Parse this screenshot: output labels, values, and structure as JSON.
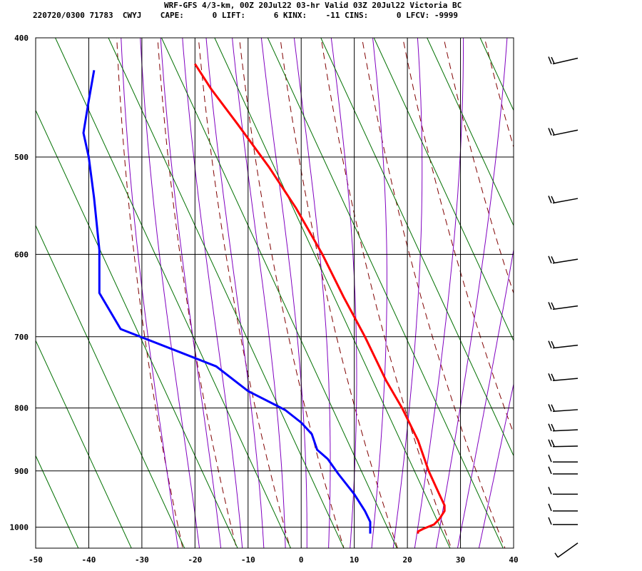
{
  "header": {
    "title": "WRF-GFS 4/3-km, 00Z 20Jul22 03-hr Valid 03Z 20Jul22 Victoria BC",
    "info": "220720/0300 71783  CWYJ    CAPE:      0 LIFT:      6 KINX:    -11 CINS:      0 LFCV: -9999"
  },
  "chart_data": {
    "type": "line",
    "title": "WRF-GFS 4/3-km, 00Z 20Jul22 03-hr Valid 03Z 20Jul22 Victoria BC",
    "xlabel": "",
    "ylabel": "",
    "xlim": [
      -50,
      40
    ],
    "ylim": [
      1040,
      400
    ],
    "x_ticks": [
      "-50",
      "-40",
      "-30",
      "-20",
      "-10",
      "0",
      "10",
      "20",
      "30",
      "40"
    ],
    "y_ticks": [
      "400",
      "500",
      "600",
      "700",
      "800",
      "900",
      "1000"
    ],
    "grid": true,
    "colors": {
      "temperature": "#ff0000",
      "dewpoint": "#0000ff",
      "dry_adiabats": "#800000",
      "moist_adiabats": "#8000c0",
      "mixing_ratio": "#007000",
      "grid": "#000000"
    },
    "series": [
      {
        "name": "",
        "role": "temperature",
        "points": [
          [
            -20,
            420
          ],
          [
            -17,
            440
          ],
          [
            -12,
            470
          ],
          [
            -6,
            510
          ],
          [
            -1,
            550
          ],
          [
            4,
            600
          ],
          [
            8,
            650
          ],
          [
            12,
            700
          ],
          [
            16,
            760
          ],
          [
            19,
            800
          ],
          [
            22,
            850
          ],
          [
            24,
            900
          ],
          [
            26,
            940
          ],
          [
            27,
            960
          ],
          [
            27,
            970
          ],
          [
            26,
            985
          ],
          [
            25,
            995
          ],
          [
            23,
            1003
          ],
          [
            22,
            1008
          ],
          [
            22,
            1012
          ]
        ]
      },
      {
        "name": "",
        "role": "dewpoint",
        "points": [
          [
            -39,
            425
          ],
          [
            -40,
            450
          ],
          [
            -41,
            478
          ],
          [
            -40,
            500
          ],
          [
            -39,
            540
          ],
          [
            -38,
            595
          ],
          [
            -38,
            620
          ],
          [
            -38,
            645
          ],
          [
            -34,
            690
          ],
          [
            -16,
            740
          ],
          [
            -10,
            775
          ],
          [
            -3,
            803
          ],
          [
            0,
            822
          ],
          [
            2,
            840
          ],
          [
            3,
            865
          ],
          [
            5,
            880
          ],
          [
            7,
            905
          ],
          [
            10,
            940
          ],
          [
            12,
            970
          ],
          [
            13,
            990
          ],
          [
            13,
            1000
          ],
          [
            13,
            1006
          ],
          [
            13,
            1012
          ]
        ]
      }
    ],
    "wind_barbs": [
      {
        "pressure": 420,
        "label": "barb"
      },
      {
        "pressure": 480,
        "label": "barb"
      },
      {
        "pressure": 545,
        "label": "barb"
      },
      {
        "pressure": 610,
        "label": "barb"
      },
      {
        "pressure": 665,
        "label": "barb"
      },
      {
        "pressure": 715,
        "label": "barb"
      },
      {
        "pressure": 760,
        "label": "barb"
      },
      {
        "pressure": 805,
        "label": "barb"
      },
      {
        "pressure": 835,
        "label": "barb"
      },
      {
        "pressure": 860,
        "label": "barb"
      },
      {
        "pressure": 885,
        "label": "barb"
      },
      {
        "pressure": 905,
        "label": "barb"
      },
      {
        "pressure": 940,
        "label": "barb"
      },
      {
        "pressure": 970,
        "label": "barb"
      },
      {
        "pressure": 995,
        "label": "barb"
      },
      {
        "pressure": 1030,
        "label": "barb"
      }
    ]
  }
}
